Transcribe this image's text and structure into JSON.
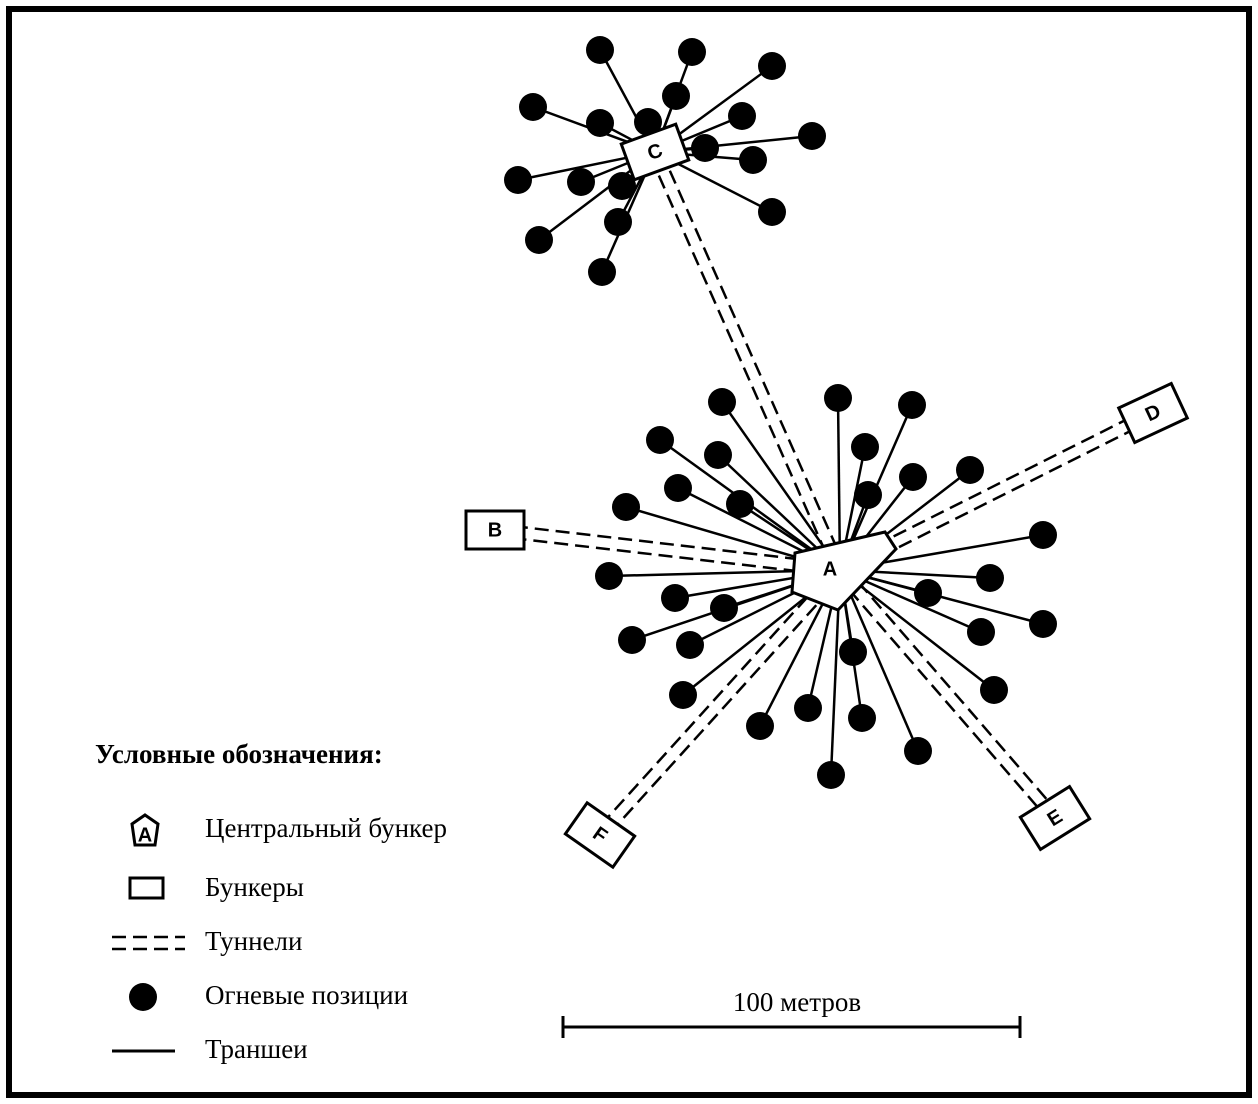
{
  "bunkers": [
    {
      "label": "A"
    },
    {
      "label": "B"
    },
    {
      "label": "C"
    },
    {
      "label": "D"
    },
    {
      "label": "E"
    },
    {
      "label": "F"
    }
  ],
  "legend": {
    "title": "Условные обозначения:",
    "items": [
      {
        "label": "Центральный бункер"
      },
      {
        "label": "Бункеры"
      },
      {
        "label": "Туннели"
      },
      {
        "label": "Огневые позиции"
      },
      {
        "label": "Траншеи"
      }
    ]
  },
  "scale": {
    "label": "100 метров"
  }
}
